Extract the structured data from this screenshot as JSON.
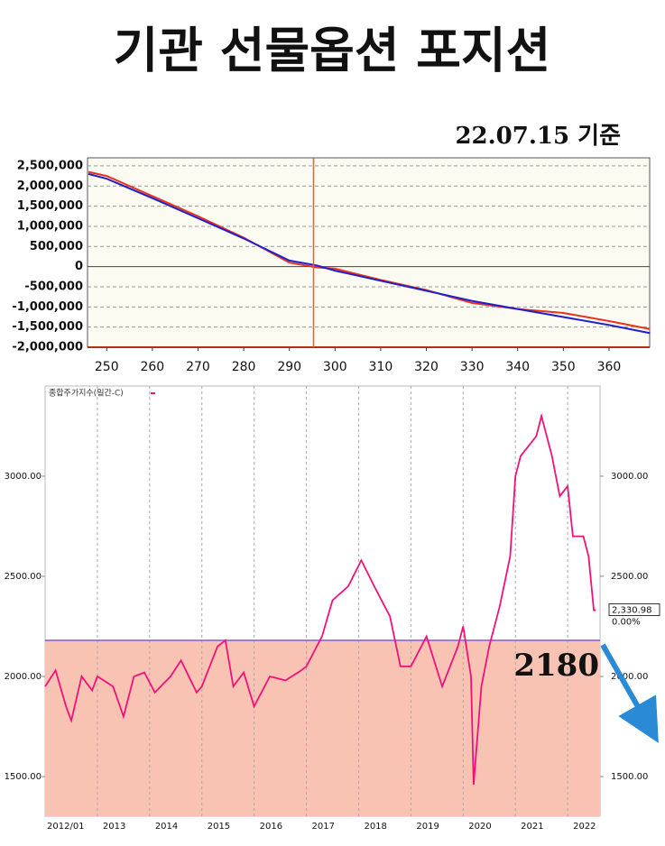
{
  "header": {
    "title": "기관 선물옵션 포지션",
    "subtitle": "22.07.15 기준"
  },
  "chart_data": [
    {
      "type": "line",
      "x": [
        246,
        250,
        260,
        270,
        280,
        290,
        296,
        300,
        310,
        320,
        330,
        340,
        350,
        360,
        369
      ],
      "series": [
        {
          "name": "red",
          "color": "#e8321e",
          "values": [
            2350000,
            2250000,
            1750000,
            1250000,
            720000,
            100000,
            -20000,
            -50000,
            -330000,
            -580000,
            -900000,
            -1050000,
            -1150000,
            -1350000,
            -1550000
          ]
        },
        {
          "name": "blue",
          "color": "#1f1fd0",
          "values": [
            2300000,
            2180000,
            1700000,
            1200000,
            700000,
            150000,
            30000,
            -100000,
            -350000,
            -600000,
            -850000,
            -1050000,
            -1250000,
            -1450000,
            -1650000
          ]
        }
      ],
      "xlim": [
        245.8,
        368.9
      ],
      "xticks": [
        250,
        260,
        270,
        280,
        290,
        300,
        310,
        320,
        330,
        340,
        350,
        360
      ],
      "ylim": [
        -2000000,
        2700000
      ],
      "yticks": [
        {
          "value": -2000000,
          "label": "-2,000,000"
        },
        {
          "value": -1500000,
          "label": "-1,500,000"
        },
        {
          "value": -1000000,
          "label": "-1,000,000"
        },
        {
          "value": -500000,
          "label": "-500,000"
        },
        0,
        {
          "value": 500000,
          "label": "500,000"
        },
        {
          "value": 1000000,
          "label": "1,000,000"
        },
        {
          "value": 1500000,
          "label": "1,500,000"
        },
        {
          "value": 2000000,
          "label": "2,000,000"
        },
        {
          "value": 2500000,
          "label": "2,500,000"
        }
      ],
      "vline": 295.3,
      "grid": true
    },
    {
      "type": "line",
      "x": [
        2012.0,
        2012.2,
        2012.4,
        2012.5,
        2012.7,
        2012.9,
        2013.0,
        2013.3,
        2013.5,
        2013.7,
        2013.9,
        2014.1,
        2014.4,
        2014.6,
        2014.9,
        2015.0,
        2015.3,
        2015.45,
        2015.6,
        2015.8,
        2016.0,
        2016.3,
        2016.6,
        2016.9,
        2017.0,
        2017.3,
        2017.5,
        2017.8,
        2018.05,
        2018.3,
        2018.6,
        2018.8,
        2019.0,
        2019.3,
        2019.6,
        2019.9,
        2020.0,
        2020.15,
        2020.2,
        2020.35,
        2020.5,
        2020.7,
        2020.9,
        2021.0,
        2021.1,
        2021.4,
        2021.5,
        2021.7,
        2021.85,
        2022.0,
        2022.1,
        2022.3,
        2022.4,
        2022.5,
        2022.54
      ],
      "series": [
        {
          "name": "종합주가지수(일간-C)",
          "color": "#f0127a",
          "values": [
            1950,
            2030,
            1850,
            1780,
            2000,
            1930,
            2000,
            1950,
            1800,
            2000,
            2020,
            1920,
            2000,
            2080,
            1920,
            1950,
            2150,
            2180,
            1950,
            2020,
            1850,
            2000,
            1980,
            2030,
            2050,
            2200,
            2380,
            2450,
            2580,
            2450,
            2300,
            2050,
            2050,
            2200,
            1950,
            2150,
            2250,
            2000,
            1460,
            1950,
            2150,
            2350,
            2600,
            3000,
            3100,
            3200,
            3300,
            3100,
            2900,
            2950,
            2700,
            2700,
            2600,
            2330,
            2330.98
          ]
        }
      ],
      "xlim": [
        2012.0,
        2022.62
      ],
      "xticks": [
        {
          "value": 2012,
          "label": "2012/01"
        },
        2013,
        2014,
        2015,
        2016,
        2017,
        2018,
        2019,
        2020,
        2021,
        2022
      ],
      "ylim": [
        1302,
        3450
      ],
      "yticks": [
        {
          "value": 1500,
          "label": "1500.00"
        },
        {
          "value": 2000,
          "label": "2000.00"
        },
        {
          "value": 2500,
          "label": "2500.00"
        },
        {
          "value": 3000,
          "label": "3000.00"
        }
      ],
      "last_value": {
        "value": 2330.98,
        "label": "2,330.98"
      },
      "change": {
        "value": 0,
        "label": "0.00%"
      },
      "hline": 2180,
      "grid": true
    }
  ]
}
